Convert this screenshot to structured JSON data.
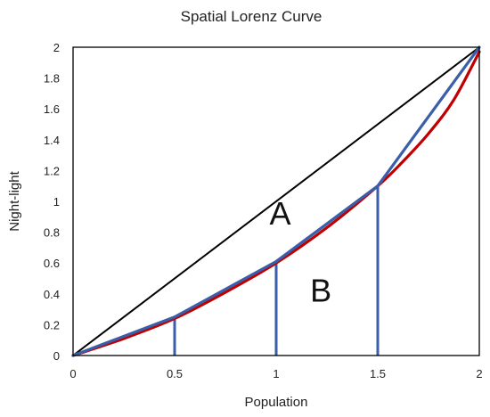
{
  "chart_data": {
    "type": "line",
    "title": "Spatial Lorenz Curve",
    "xlabel": "Population",
    "ylabel": "Night-light",
    "xlim": [
      0,
      2
    ],
    "ylim": [
      0,
      2
    ],
    "x_ticks": [
      "0",
      "0.5",
      "1",
      "1.5",
      "2"
    ],
    "y_ticks": [
      "0",
      "0.2",
      "0.4",
      "0.6",
      "0.8",
      "1",
      "1.2",
      "1.4",
      "1.6",
      "1.8",
      "2"
    ],
    "grid": false,
    "legend": "none",
    "series": [
      {
        "kind": "equality-line",
        "color": "#000000",
        "x": [
          0,
          2
        ],
        "y": [
          0,
          2
        ]
      },
      {
        "kind": "lorenz-curve",
        "color": "#c00000",
        "x": [
          0,
          0.25,
          0.5,
          0.75,
          1.0,
          1.25,
          1.5,
          1.625,
          1.75,
          1.875,
          2.0
        ],
        "y": [
          0,
          0.11,
          0.24,
          0.41,
          0.6,
          0.83,
          1.1,
          1.26,
          1.44,
          1.66,
          1.97
        ]
      },
      {
        "kind": "piecewise-linear",
        "color": "#3a5ea8",
        "x": [
          0,
          0.5,
          1.0,
          1.5,
          2.0
        ],
        "y": [
          0,
          0.25,
          0.61,
          1.1,
          2.0
        ]
      }
    ],
    "verticals": [
      {
        "x": 0.5,
        "y": 0.25
      },
      {
        "x": 1.0,
        "y": 0.61
      },
      {
        "x": 1.5,
        "y": 1.1
      }
    ],
    "vertical_color": "#3a5ea8",
    "annotations": [
      {
        "text": "A",
        "x": 1.02,
        "y": 0.85
      },
      {
        "text": "B",
        "x": 1.22,
        "y": 0.35
      }
    ]
  }
}
